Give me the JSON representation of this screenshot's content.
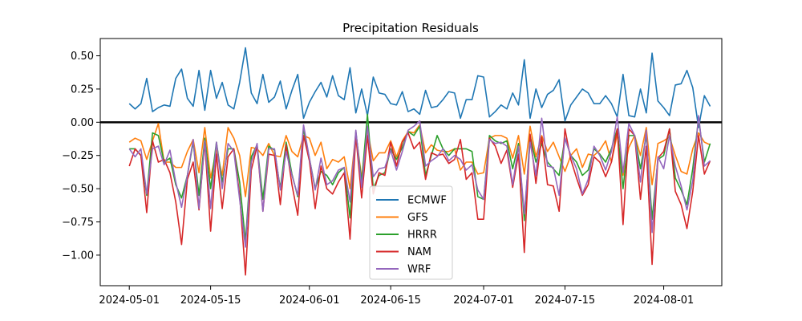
{
  "chart_data": {
    "type": "line",
    "title": "Precipitation Residuals",
    "xlabel": "",
    "ylabel": "",
    "x_start": "2024-05-01",
    "x_end": "2024-08-06",
    "xlim": [
      "2024-04-26",
      "2024-08-11"
    ],
    "ylim": [
      -1.23,
      0.63
    ],
    "x_ticks": [
      "2024-05-01",
      "2024-05-15",
      "2024-06-01",
      "2024-06-15",
      "2024-07-01",
      "2024-07-15",
      "2024-08-01"
    ],
    "y_ticks": [
      0.5,
      0.25,
      0.0,
      -0.25,
      -0.5,
      -0.75,
      -1.0
    ],
    "y_tick_labels": [
      "0.50",
      "0.25",
      "0.00",
      "−0.25",
      "−0.50",
      "−0.75",
      "−1.00"
    ],
    "reference_line": 0,
    "grid": false,
    "legend_position": "lower-center",
    "series": [
      {
        "name": "ECMWF",
        "color": "#1f77b4",
        "values": [
          0.14,
          0.1,
          0.14,
          0.33,
          0.08,
          0.11,
          0.13,
          0.12,
          0.33,
          0.4,
          0.18,
          0.12,
          0.39,
          0.09,
          0.39,
          0.18,
          0.3,
          0.13,
          0.1,
          0.3,
          0.56,
          0.22,
          0.14,
          0.36,
          0.15,
          0.19,
          0.31,
          0.1,
          0.24,
          0.36,
          0.03,
          0.15,
          0.23,
          0.3,
          0.19,
          0.35,
          0.2,
          0.17,
          0.41,
          0.07,
          0.25,
          0.05,
          0.34,
          0.22,
          0.21,
          0.14,
          0.13,
          0.23,
          0.08,
          0.1,
          0.06,
          0.24,
          0.11,
          0.12,
          0.17,
          0.23,
          0.22,
          0.03,
          0.17,
          0.17,
          0.35,
          0.34,
          0.04,
          0.08,
          0.13,
          0.1,
          0.22,
          0.13,
          0.47,
          0.03,
          0.25,
          0.11,
          0.21,
          0.24,
          0.32,
          0.01,
          0.13,
          0.19,
          0.25,
          0.22,
          0.14,
          0.14,
          0.2,
          0.14,
          0.04,
          0.36,
          0.05,
          0.04,
          0.25,
          0.07,
          0.52,
          0.16,
          0.11,
          0.05,
          0.28,
          0.29,
          0.39,
          0.26,
          -0.04,
          0.2,
          0.12
        ]
      },
      {
        "name": "GFS",
        "color": "#ff7f0e",
        "values": [
          -0.15,
          -0.12,
          -0.14,
          -0.28,
          -0.14,
          -0.01,
          -0.3,
          -0.3,
          -0.34,
          -0.34,
          -0.22,
          -0.13,
          -0.38,
          -0.04,
          -0.42,
          -0.21,
          -0.4,
          -0.04,
          -0.12,
          -0.25,
          -0.56,
          -0.19,
          -0.2,
          -0.25,
          -0.16,
          -0.25,
          -0.26,
          -0.1,
          -0.22,
          -0.26,
          -0.1,
          -0.12,
          -0.25,
          -0.15,
          -0.35,
          -0.28,
          -0.3,
          -0.26,
          -0.5,
          -0.08,
          -0.42,
          -0.06,
          -0.29,
          -0.23,
          -0.23,
          -0.14,
          -0.26,
          -0.14,
          -0.07,
          -0.08,
          -0.02,
          -0.23,
          -0.17,
          -0.21,
          -0.22,
          -0.22,
          -0.2,
          -0.36,
          -0.3,
          -0.3,
          -0.39,
          -0.38,
          -0.12,
          -0.1,
          -0.1,
          -0.12,
          -0.27,
          -0.1,
          -0.39,
          -0.03,
          -0.26,
          -0.1,
          -0.22,
          -0.15,
          -0.26,
          -0.37,
          -0.25,
          -0.2,
          -0.34,
          -0.24,
          -0.25,
          -0.21,
          -0.14,
          -0.3,
          -0.09,
          -0.4,
          -0.19,
          -0.1,
          -0.25,
          -0.04,
          -0.47,
          -0.16,
          -0.14,
          -0.11,
          -0.25,
          -0.37,
          -0.39,
          -0.2,
          -0.08,
          -0.15,
          -0.17
        ]
      },
      {
        "name": "HRRR",
        "color": "#2ca02c",
        "values": [
          -0.2,
          -0.2,
          -0.25,
          -0.55,
          -0.08,
          -0.1,
          -0.3,
          -0.27,
          -0.47,
          -0.57,
          -0.4,
          -0.15,
          -0.55,
          -0.12,
          -0.5,
          -0.15,
          -0.45,
          -0.2,
          -0.2,
          -0.45,
          -0.9,
          -0.26,
          -0.17,
          -0.58,
          -0.18,
          -0.21,
          -0.5,
          -0.15,
          -0.39,
          -0.56,
          -0.05,
          -0.27,
          -0.5,
          -0.37,
          -0.4,
          -0.47,
          -0.38,
          -0.34,
          -0.72,
          -0.07,
          -0.45,
          0.06,
          -0.5,
          -0.4,
          -0.38,
          -0.2,
          -0.28,
          -0.19,
          -0.07,
          -0.1,
          -0.03,
          -0.4,
          -0.25,
          -0.1,
          -0.2,
          -0.25,
          -0.2,
          -0.2,
          -0.2,
          -0.22,
          -0.56,
          -0.58,
          -0.1,
          -0.14,
          -0.16,
          -0.14,
          -0.35,
          -0.16,
          -0.74,
          -0.1,
          -0.3,
          -0.16,
          -0.3,
          -0.35,
          -0.4,
          -0.12,
          -0.25,
          -0.3,
          -0.4,
          -0.36,
          -0.2,
          -0.24,
          -0.3,
          -0.2,
          -0.05,
          -0.5,
          -0.1,
          -0.1,
          -0.35,
          -0.1,
          -0.73,
          -0.28,
          -0.25,
          -0.05,
          -0.42,
          -0.51,
          -0.62,
          -0.35,
          0.03,
          -0.3,
          -0.16
        ]
      },
      {
        "name": "NAM",
        "color": "#d62728",
        "values": [
          -0.33,
          -0.2,
          -0.25,
          -0.68,
          -0.14,
          -0.3,
          -0.28,
          -0.38,
          -0.6,
          -0.92,
          -0.43,
          -0.3,
          -0.66,
          -0.15,
          -0.82,
          -0.24,
          -0.65,
          -0.26,
          -0.2,
          -0.55,
          -1.15,
          -0.36,
          -0.18,
          -0.67,
          -0.24,
          -0.25,
          -0.62,
          -0.17,
          -0.47,
          -0.7,
          -0.1,
          -0.29,
          -0.65,
          -0.33,
          -0.5,
          -0.54,
          -0.45,
          -0.38,
          -0.88,
          -0.1,
          -0.57,
          -0.1,
          -0.54,
          -0.38,
          -0.4,
          -0.15,
          -0.33,
          -0.15,
          -0.08,
          -0.2,
          -0.15,
          -0.43,
          -0.23,
          -0.25,
          -0.24,
          -0.31,
          -0.28,
          -0.13,
          -0.43,
          -0.38,
          -0.73,
          -0.73,
          -0.12,
          -0.18,
          -0.31,
          -0.21,
          -0.49,
          -0.24,
          -0.98,
          -0.09,
          -0.46,
          -0.11,
          -0.47,
          -0.48,
          -0.67,
          -0.05,
          -0.28,
          -0.42,
          -0.55,
          -0.47,
          -0.26,
          -0.3,
          -0.41,
          -0.3,
          -0.05,
          -0.77,
          -0.05,
          -0.1,
          -0.58,
          -0.18,
          -1.07,
          -0.27,
          -0.22,
          -0.05,
          -0.52,
          -0.62,
          -0.8,
          -0.52,
          -0.1,
          -0.39,
          -0.29
        ]
      },
      {
        "name": "WRF",
        "color": "#9467bd",
        "values": [
          -0.2,
          -0.26,
          -0.2,
          -0.54,
          -0.2,
          -0.18,
          -0.32,
          -0.21,
          -0.45,
          -0.64,
          -0.4,
          -0.13,
          -0.65,
          -0.14,
          -0.65,
          -0.15,
          -0.5,
          -0.16,
          -0.22,
          -0.58,
          -0.94,
          -0.3,
          -0.16,
          -0.67,
          -0.2,
          -0.2,
          -0.51,
          -0.22,
          -0.4,
          -0.55,
          -0.02,
          -0.27,
          -0.51,
          -0.27,
          -0.47,
          -0.44,
          -0.36,
          -0.34,
          -0.6,
          -0.06,
          -0.49,
          -0.03,
          -0.41,
          -0.35,
          -0.34,
          -0.21,
          -0.36,
          -0.22,
          -0.06,
          -0.03,
          0.01,
          -0.33,
          -0.29,
          -0.26,
          -0.2,
          -0.29,
          -0.25,
          -0.28,
          -0.36,
          -0.32,
          -0.51,
          -0.58,
          -0.13,
          -0.16,
          -0.15,
          -0.18,
          -0.47,
          -0.18,
          -0.69,
          -0.15,
          -0.4,
          0.03,
          -0.33,
          -0.34,
          -0.55,
          -0.12,
          -0.25,
          -0.35,
          -0.54,
          -0.43,
          -0.18,
          -0.25,
          -0.36,
          -0.22,
          0.04,
          -0.38,
          -0.01,
          -0.1,
          -0.45,
          -0.06,
          -0.83,
          -0.26,
          -0.35,
          -0.1,
          -0.33,
          -0.48,
          -0.66,
          -0.44,
          0.05,
          -0.33,
          -0.29
        ]
      }
    ]
  }
}
